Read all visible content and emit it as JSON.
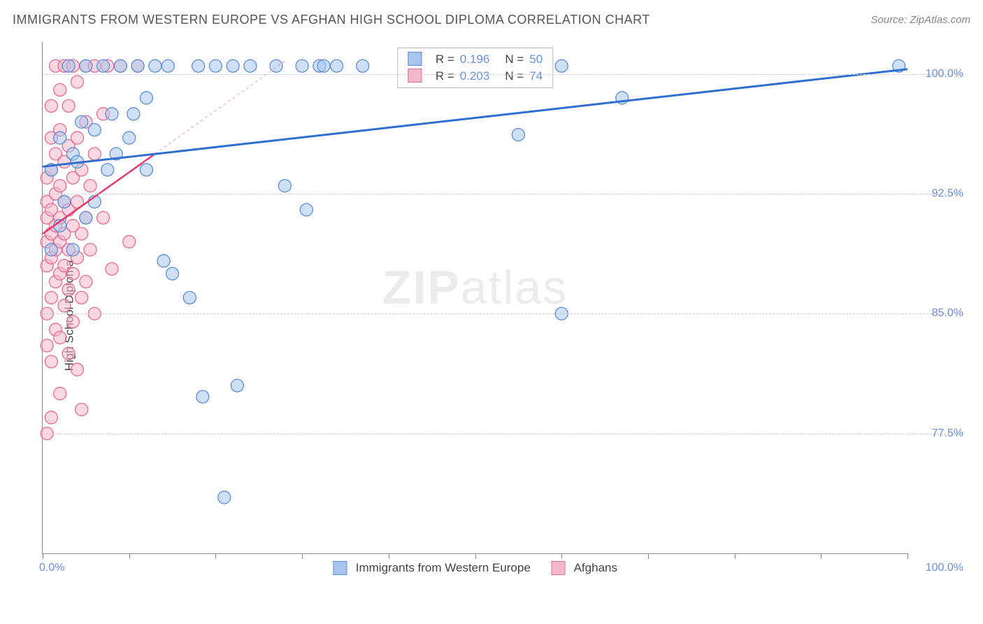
{
  "header": {
    "title": "IMMIGRANTS FROM WESTERN EUROPE VS AFGHAN HIGH SCHOOL DIPLOMA CORRELATION CHART",
    "source": "Source: ZipAtlas.com"
  },
  "watermark": {
    "bold": "ZIP",
    "light": "atlas"
  },
  "chart": {
    "type": "scatter",
    "ylabel": "High School Diploma",
    "background_color": "#ffffff",
    "grid_color": "#cccccc",
    "axis_color": "#888888",
    "tick_label_color": "#6a8fd8",
    "xlim": [
      0,
      100
    ],
    "ylim": [
      70,
      102
    ],
    "xtick_positions": [
      0,
      10,
      20,
      30,
      40,
      50,
      60,
      70,
      80,
      90,
      100
    ],
    "xtick_labels": {
      "left": "0.0%",
      "right": "100.0%"
    },
    "ytick_positions": [
      77.5,
      85.0,
      92.5,
      100.0
    ],
    "ytick_labels": [
      "77.5%",
      "85.0%",
      "92.5%",
      "100.0%"
    ],
    "series": [
      {
        "name": "Immigrants from Western Europe",
        "marker_fill": "#a8c5ed",
        "marker_stroke": "#5b8fd6",
        "marker_opacity": 0.55,
        "marker_radius": 9,
        "trend_color": "#2f6fd0",
        "trend_width": 3,
        "trend": {
          "x1": 0,
          "y1": 94.2,
          "x2": 100,
          "y2": 100.3
        },
        "R": "0.196",
        "N": "50",
        "points": [
          [
            1,
            89
          ],
          [
            1,
            94
          ],
          [
            2,
            90.5
          ],
          [
            2,
            96
          ],
          [
            2.5,
            92
          ],
          [
            3,
            100.5
          ],
          [
            3.5,
            95
          ],
          [
            3.5,
            89
          ],
          [
            4,
            94.5
          ],
          [
            4.5,
            97
          ],
          [
            5,
            91
          ],
          [
            5,
            100.5
          ],
          [
            6,
            96.5
          ],
          [
            6,
            92
          ],
          [
            7,
            100.5
          ],
          [
            7.5,
            94
          ],
          [
            8,
            97.5
          ],
          [
            8.5,
            95
          ],
          [
            9,
            100.5
          ],
          [
            10,
            96
          ],
          [
            10.5,
            97.5
          ],
          [
            11,
            100.5
          ],
          [
            12,
            94
          ],
          [
            12,
            98.5
          ],
          [
            13,
            100.5
          ],
          [
            14,
            88.3
          ],
          [
            14.5,
            100.5
          ],
          [
            15,
            87.5
          ],
          [
            17,
            86
          ],
          [
            18,
            100.5
          ],
          [
            18.5,
            79.8
          ],
          [
            20,
            100.5
          ],
          [
            21,
            73.5
          ],
          [
            22,
            100.5
          ],
          [
            22.5,
            80.5
          ],
          [
            24,
            100.5
          ],
          [
            27,
            100.5
          ],
          [
            28,
            93
          ],
          [
            30,
            100.5
          ],
          [
            30.5,
            91.5
          ],
          [
            32,
            100.5
          ],
          [
            32.5,
            100.5
          ],
          [
            34,
            100.5
          ],
          [
            37,
            100.5
          ],
          [
            54,
            100.5
          ],
          [
            55,
            96.2
          ],
          [
            60,
            100.5
          ],
          [
            60,
            85
          ],
          [
            67,
            98.5
          ],
          [
            99,
            100.5
          ]
        ]
      },
      {
        "name": "Afghans",
        "marker_fill": "#f5b8c9",
        "marker_stroke": "#e56b8f",
        "marker_opacity": 0.55,
        "marker_radius": 9,
        "trend_color": "#e23b6b",
        "trend_width": 2.5,
        "trend": {
          "x1": 0,
          "y1": 90.0,
          "x2": 13,
          "y2": 95.0
        },
        "trend_ext_dash": {
          "x1": 13,
          "y1": 95.0,
          "x2": 28,
          "y2": 100.8
        },
        "R": "0.203",
        "N": "74",
        "points": [
          [
            0.5,
            77.5
          ],
          [
            0.5,
            83
          ],
          [
            0.5,
            85
          ],
          [
            0.5,
            88
          ],
          [
            0.5,
            89.5
          ],
          [
            0.5,
            91
          ],
          [
            0.5,
            92
          ],
          [
            0.5,
            93.5
          ],
          [
            1,
            78.5
          ],
          [
            1,
            82
          ],
          [
            1,
            86
          ],
          [
            1,
            88.5
          ],
          [
            1,
            90
          ],
          [
            1,
            91.5
          ],
          [
            1,
            94
          ],
          [
            1,
            96
          ],
          [
            1,
            98
          ],
          [
            1.5,
            84
          ],
          [
            1.5,
            87
          ],
          [
            1.5,
            89
          ],
          [
            1.5,
            90.5
          ],
          [
            1.5,
            92.5
          ],
          [
            1.5,
            95
          ],
          [
            1.5,
            100.5
          ],
          [
            2,
            80
          ],
          [
            2,
            83.5
          ],
          [
            2,
            87.5
          ],
          [
            2,
            89.5
          ],
          [
            2,
            91
          ],
          [
            2,
            93
          ],
          [
            2,
            96.5
          ],
          [
            2,
            99
          ],
          [
            2.5,
            85.5
          ],
          [
            2.5,
            88
          ],
          [
            2.5,
            90
          ],
          [
            2.5,
            92
          ],
          [
            2.5,
            94.5
          ],
          [
            2.5,
            100.5
          ],
          [
            3,
            82.5
          ],
          [
            3,
            86.5
          ],
          [
            3,
            89
          ],
          [
            3,
            91.5
          ],
          [
            3,
            95.5
          ],
          [
            3,
            98
          ],
          [
            3.5,
            84.5
          ],
          [
            3.5,
            87.5
          ],
          [
            3.5,
            90.5
          ],
          [
            3.5,
            93.5
          ],
          [
            3.5,
            100.5
          ],
          [
            4,
            81.5
          ],
          [
            4,
            88.5
          ],
          [
            4,
            92
          ],
          [
            4,
            96
          ],
          [
            4,
            99.5
          ],
          [
            4.5,
            79
          ],
          [
            4.5,
            86
          ],
          [
            4.5,
            90
          ],
          [
            4.5,
            94
          ],
          [
            5,
            87
          ],
          [
            5,
            91
          ],
          [
            5,
            97
          ],
          [
            5,
            100.5
          ],
          [
            5.5,
            89
          ],
          [
            5.5,
            93
          ],
          [
            6,
            85
          ],
          [
            6,
            95
          ],
          [
            6,
            100.5
          ],
          [
            7,
            91
          ],
          [
            7,
            97.5
          ],
          [
            7.5,
            100.5
          ],
          [
            8,
            87.8
          ],
          [
            9,
            100.5
          ],
          [
            10,
            89.5
          ],
          [
            11,
            100.5
          ]
        ]
      }
    ],
    "top_legend": {
      "labels": {
        "R": "R =",
        "N": "N ="
      }
    },
    "bottom_legend": {
      "items": [
        {
          "label": "Immigrants from Western Europe",
          "fill": "#a8c5ed",
          "stroke": "#5b8fd6"
        },
        {
          "label": "Afghans",
          "fill": "#f5b8c9",
          "stroke": "#e56b8f"
        }
      ]
    }
  }
}
